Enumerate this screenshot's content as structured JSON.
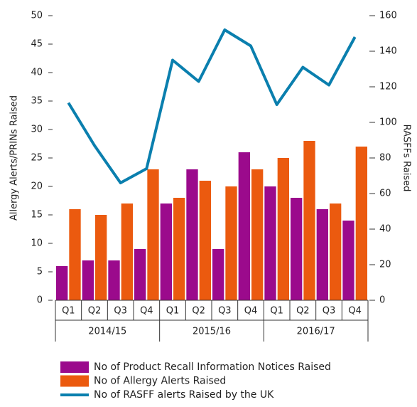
{
  "chart_data": {
    "type": "bar-line",
    "ylabel": "Allergy Alerts/PRINs Raised",
    "y2label": "RASFFs Raised",
    "categories": [
      "Q1",
      "Q2",
      "Q3",
      "Q4",
      "Q1",
      "Q2",
      "Q3",
      "Q4",
      "Q1",
      "Q2",
      "Q3",
      "Q4"
    ],
    "groups": [
      "2014/15",
      "2015/16",
      "2016/17"
    ],
    "series": [
      {
        "name": "No of Product Recall Information Notices Raised",
        "type": "bar",
        "color": "#9b0a8c",
        "values": [
          6,
          7,
          7,
          9,
          17,
          23,
          9,
          26,
          20,
          18,
          16,
          14
        ]
      },
      {
        "name": "No of Allergy Alerts Raised",
        "type": "bar",
        "color": "#eb5a0f",
        "values": [
          16,
          15,
          17,
          23,
          18,
          21,
          20,
          23,
          25,
          28,
          17,
          27
        ]
      },
      {
        "name": "No of RASFF alerts Raised by the UK",
        "type": "line",
        "axis": "y2",
        "color": "#0a7fae",
        "values": [
          111,
          87,
          66,
          74,
          135,
          123,
          152,
          143,
          110,
          131,
          121,
          148
        ]
      }
    ],
    "ylim": [
      0,
      50
    ],
    "yticks": [
      0,
      5,
      10,
      15,
      20,
      25,
      30,
      35,
      40,
      45,
      50
    ],
    "y2lim": [
      0,
      160
    ],
    "y2ticks": [
      0,
      20,
      40,
      60,
      80,
      100,
      120,
      140,
      160
    ]
  }
}
